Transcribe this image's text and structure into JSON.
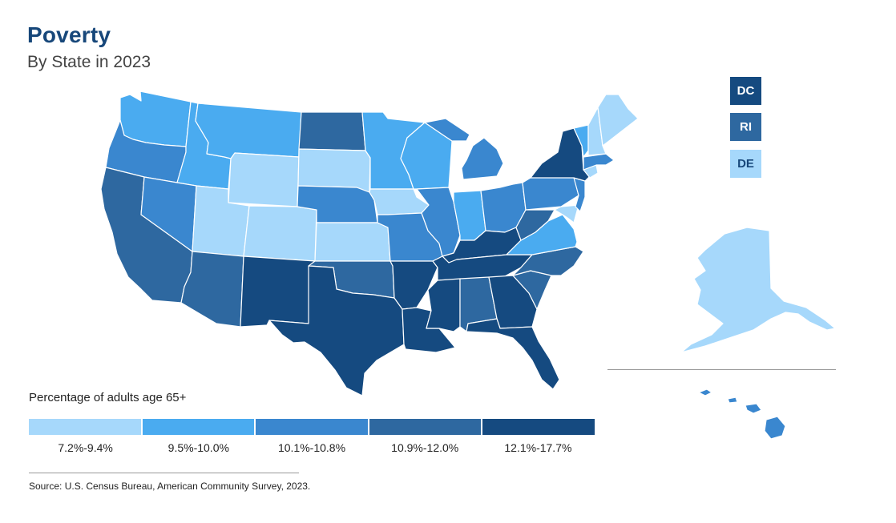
{
  "header": {
    "title": "Poverty",
    "subtitle": "By State in 2023"
  },
  "colors": {
    "bin1": "#a6d8fb",
    "bin2": "#4aabf0",
    "bin3": "#3a87cf",
    "bin4": "#2e68a0",
    "bin5": "#154a80"
  },
  "legend": {
    "title": "Percentage of adults age 65+",
    "bins": [
      {
        "label": "7.2%-9.4%",
        "color": "#a6d8fb"
      },
      {
        "label": "9.5%-10.0%",
        "color": "#4aabf0"
      },
      {
        "label": "10.1%-10.8%",
        "color": "#3a87cf"
      },
      {
        "label": "10.9%-12.0%",
        "color": "#2e68a0"
      },
      {
        "label": "12.1%-17.7%",
        "color": "#154a80"
      }
    ]
  },
  "small_states": [
    {
      "abbr": "DC",
      "bin": 5
    },
    {
      "abbr": "RI",
      "bin": 4
    },
    {
      "abbr": "DE",
      "bin": 1
    }
  ],
  "state_bins": {
    "WA": 2,
    "OR": 3,
    "CA": 4,
    "ID": 2,
    "NV": 3,
    "MT": 2,
    "WY": 1,
    "UT": 1,
    "AZ": 4,
    "CO": 1,
    "NM": 5,
    "ND": 4,
    "SD": 1,
    "NE": 3,
    "KS": 1,
    "OK": 4,
    "TX": 5,
    "MN": 2,
    "IA": 1,
    "MO": 3,
    "AR": 5,
    "LA": 5,
    "WI": 2,
    "IL": 3,
    "MI": 3,
    "IN": 2,
    "OH": 3,
    "KY": 5,
    "TN": 5,
    "MS": 5,
    "AL": 4,
    "GA": 5,
    "FL": 5,
    "SC": 4,
    "NC": 4,
    "VA": 2,
    "WV": 4,
    "PA": 3,
    "NY": 5,
    "NJ": 3,
    "MD": 1,
    "CT": 1,
    "MA": 3,
    "VT": 2,
    "NH": 1,
    "ME": 1,
    "AK": 1,
    "HI": 3
  },
  "source": "Source: U.S. Census Bureau, American Community Survey, 2023."
}
